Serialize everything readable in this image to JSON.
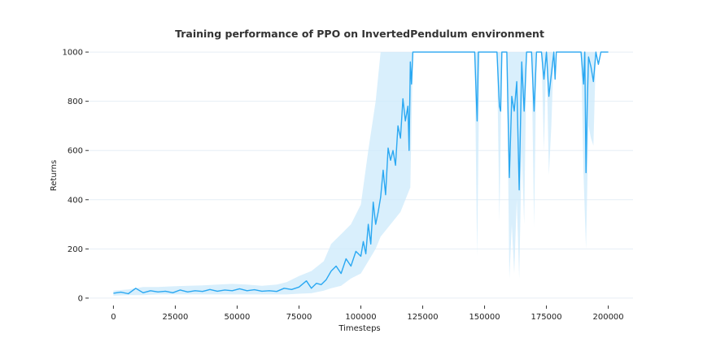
{
  "chart_data": {
    "type": "line",
    "title": "Training performance of PPO on InvertedPendulum environment",
    "xlabel": "Timesteps",
    "ylabel": "Returns",
    "xlim": [
      -10000,
      210000
    ],
    "ylim": [
      -30,
      1030
    ],
    "x_ticks": [
      0,
      25000,
      50000,
      75000,
      100000,
      125000,
      150000,
      175000,
      200000
    ],
    "y_ticks": [
      0,
      200,
      400,
      600,
      800,
      1000
    ],
    "grid": "horizontal",
    "colors": {
      "line": "#2aa8f2",
      "band": "#cce9fb",
      "grid": "#e6eef5"
    },
    "series": [
      {
        "values": [
          [
            0,
            20
          ],
          [
            3000,
            24
          ],
          [
            6000,
            18
          ],
          [
            9000,
            40
          ],
          [
            12000,
            22
          ],
          [
            15000,
            30
          ],
          [
            18000,
            25
          ],
          [
            21000,
            28
          ],
          [
            24000,
            22
          ],
          [
            27000,
            33
          ],
          [
            30000,
            25
          ],
          [
            33000,
            30
          ],
          [
            36000,
            27
          ],
          [
            39000,
            35
          ],
          [
            42000,
            28
          ],
          [
            45000,
            33
          ],
          [
            48000,
            30
          ],
          [
            51000,
            38
          ],
          [
            54000,
            30
          ],
          [
            57000,
            34
          ],
          [
            60000,
            28
          ],
          [
            63000,
            30
          ],
          [
            66000,
            27
          ],
          [
            69000,
            40
          ],
          [
            72000,
            35
          ],
          [
            75000,
            45
          ],
          [
            78000,
            70
          ],
          [
            80000,
            40
          ],
          [
            82000,
            60
          ],
          [
            84000,
            55
          ],
          [
            86000,
            75
          ],
          [
            88000,
            110
          ],
          [
            90000,
            130
          ],
          [
            92000,
            100
          ],
          [
            94000,
            160
          ],
          [
            96000,
            130
          ],
          [
            98000,
            190
          ],
          [
            100000,
            170
          ],
          [
            101000,
            230
          ],
          [
            102000,
            180
          ],
          [
            103000,
            300
          ],
          [
            104000,
            220
          ],
          [
            105000,
            390
          ],
          [
            106000,
            300
          ],
          [
            107000,
            350
          ],
          [
            108000,
            410
          ],
          [
            109000,
            520
          ],
          [
            110000,
            420
          ],
          [
            111000,
            610
          ],
          [
            112000,
            560
          ],
          [
            113000,
            600
          ],
          [
            114000,
            540
          ],
          [
            115000,
            700
          ],
          [
            116000,
            650
          ],
          [
            117000,
            810
          ],
          [
            118000,
            720
          ],
          [
            119000,
            780
          ],
          [
            119500,
            600
          ],
          [
            120000,
            960
          ],
          [
            120500,
            870
          ],
          [
            121000,
            1000
          ],
          [
            146000,
            1000
          ],
          [
            147000,
            720
          ],
          [
            147500,
            1000
          ],
          [
            155000,
            1000
          ],
          [
            156000,
            780
          ],
          [
            156500,
            760
          ],
          [
            157000,
            1000
          ],
          [
            159000,
            1000
          ],
          [
            160000,
            490
          ],
          [
            161000,
            820
          ],
          [
            162000,
            760
          ],
          [
            163000,
            880
          ],
          [
            164000,
            440
          ],
          [
            165000,
            960
          ],
          [
            166000,
            760
          ],
          [
            167000,
            1000
          ],
          [
            169000,
            1000
          ],
          [
            170000,
            760
          ],
          [
            171000,
            1000
          ],
          [
            173000,
            1000
          ],
          [
            174000,
            890
          ],
          [
            175000,
            1000
          ],
          [
            176000,
            820
          ],
          [
            177000,
            910
          ],
          [
            178000,
            1000
          ],
          [
            178500,
            890
          ],
          [
            179000,
            1000
          ],
          [
            189000,
            1000
          ],
          [
            190000,
            870
          ],
          [
            190500,
            1000
          ],
          [
            191000,
            510
          ],
          [
            191500,
            780
          ],
          [
            192000,
            980
          ],
          [
            193000,
            940
          ],
          [
            194000,
            880
          ],
          [
            195000,
            1000
          ],
          [
            196000,
            950
          ],
          [
            197000,
            1000
          ],
          [
            200000,
            1000
          ]
        ],
        "band": [
          [
            0,
            10,
            30
          ],
          [
            6000,
            12,
            35
          ],
          [
            12000,
            12,
            45
          ],
          [
            18000,
            15,
            45
          ],
          [
            24000,
            15,
            48
          ],
          [
            30000,
            15,
            50
          ],
          [
            36000,
            15,
            52
          ],
          [
            42000,
            15,
            55
          ],
          [
            48000,
            15,
            58
          ],
          [
            54000,
            15,
            55
          ],
          [
            60000,
            15,
            50
          ],
          [
            66000,
            15,
            55
          ],
          [
            70000,
            15,
            65
          ],
          [
            75000,
            18,
            90
          ],
          [
            80000,
            20,
            110
          ],
          [
            85000,
            30,
            150
          ],
          [
            88000,
            40,
            220
          ],
          [
            92000,
            50,
            260
          ],
          [
            96000,
            80,
            300
          ],
          [
            100000,
            100,
            380
          ],
          [
            103000,
            150,
            600
          ],
          [
            106000,
            200,
            800
          ],
          [
            108000,
            250,
            1000
          ],
          [
            112000,
            300,
            1000
          ],
          [
            116000,
            350,
            1000
          ],
          [
            120000,
            450,
            1000
          ],
          [
            121000,
            1000,
            1000
          ],
          [
            146000,
            1000,
            1000
          ],
          [
            147000,
            170,
            1000
          ],
          [
            148000,
            1000,
            1000
          ],
          [
            155000,
            1000,
            1000
          ],
          [
            156000,
            310,
            1000
          ],
          [
            157000,
            1000,
            1000
          ],
          [
            159000,
            1000,
            1000
          ],
          [
            160000,
            80,
            1000
          ],
          [
            161000,
            300,
            1000
          ],
          [
            162000,
            100,
            1000
          ],
          [
            163000,
            400,
            1000
          ],
          [
            164000,
            80,
            1000
          ],
          [
            165000,
            600,
            1000
          ],
          [
            166000,
            300,
            1000
          ],
          [
            167000,
            1000,
            1000
          ],
          [
            169000,
            1000,
            1000
          ],
          [
            170000,
            290,
            1000
          ],
          [
            171000,
            1000,
            1000
          ],
          [
            173000,
            1000,
            1000
          ],
          [
            174000,
            600,
            1000
          ],
          [
            175000,
            1000,
            1000
          ],
          [
            176000,
            500,
            1000
          ],
          [
            177000,
            700,
            1000
          ],
          [
            178000,
            1000,
            1000
          ],
          [
            189000,
            1000,
            1000
          ],
          [
            190000,
            500,
            1000
          ],
          [
            191000,
            200,
            1000
          ],
          [
            192000,
            700,
            1000
          ],
          [
            193000,
            650,
            1000
          ],
          [
            194000,
            620,
            1000
          ],
          [
            195000,
            1000,
            1000
          ],
          [
            200000,
            1000,
            1000
          ]
        ]
      }
    ]
  }
}
